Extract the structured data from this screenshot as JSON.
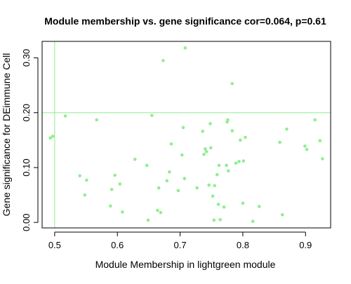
{
  "chart_data": {
    "type": "scatter",
    "title": "Module membership vs. gene significance cor=0.064, p=0.61",
    "xlabel": "Module Membership in lightgreen module",
    "ylabel": "Gene significance for DEimmune Cell",
    "xlim": [
      0.48,
      0.94
    ],
    "ylim": [
      -0.01,
      0.33
    ],
    "x_ticks": [
      0.5,
      0.6,
      0.7,
      0.8,
      0.9
    ],
    "x_tick_labels": [
      "0.5",
      "0.6",
      "0.7",
      "0.8",
      "0.9"
    ],
    "y_ticks": [
      0.0,
      0.1,
      0.2,
      0.3
    ],
    "y_tick_labels": [
      "0.00",
      "0.10",
      "0.20",
      "0.30"
    ],
    "ref_lines": {
      "vertical_x": 0.5,
      "horizontal_y": 0.2
    },
    "grid": false,
    "colors": {
      "points": "#90ee90",
      "reference_lines": "#90ee90",
      "axes": "#000000"
    },
    "points": [
      {
        "x": 0.493,
        "y": 0.154
      },
      {
        "x": 0.497,
        "y": 0.157
      },
      {
        "x": 0.517,
        "y": 0.194
      },
      {
        "x": 0.54,
        "y": 0.085
      },
      {
        "x": 0.548,
        "y": 0.05
      },
      {
        "x": 0.551,
        "y": 0.077
      },
      {
        "x": 0.567,
        "y": 0.187
      },
      {
        "x": 0.589,
        "y": 0.03
      },
      {
        "x": 0.591,
        "y": 0.06
      },
      {
        "x": 0.596,
        "y": 0.086
      },
      {
        "x": 0.604,
        "y": 0.07
      },
      {
        "x": 0.608,
        "y": 0.019
      },
      {
        "x": 0.628,
        "y": 0.115
      },
      {
        "x": 0.647,
        "y": 0.104
      },
      {
        "x": 0.649,
        "y": 0.004
      },
      {
        "x": 0.655,
        "y": 0.195
      },
      {
        "x": 0.664,
        "y": 0.022
      },
      {
        "x": 0.666,
        "y": 0.063
      },
      {
        "x": 0.669,
        "y": 0.018
      },
      {
        "x": 0.673,
        "y": 0.295
      },
      {
        "x": 0.679,
        "y": 0.076
      },
      {
        "x": 0.683,
        "y": 0.092
      },
      {
        "x": 0.686,
        "y": 0.143
      },
      {
        "x": 0.697,
        "y": 0.058
      },
      {
        "x": 0.703,
        "y": 0.123
      },
      {
        "x": 0.705,
        "y": 0.173
      },
      {
        "x": 0.707,
        "y": 0.08
      },
      {
        "x": 0.708,
        "y": 0.318
      },
      {
        "x": 0.727,
        "y": 0.063
      },
      {
        "x": 0.736,
        "y": 0.166
      },
      {
        "x": 0.738,
        "y": 0.124
      },
      {
        "x": 0.74,
        "y": 0.134
      },
      {
        "x": 0.742,
        "y": 0.129
      },
      {
        "x": 0.746,
        "y": 0.068
      },
      {
        "x": 0.748,
        "y": 0.18
      },
      {
        "x": 0.749,
        "y": 0.136
      },
      {
        "x": 0.752,
        "y": 0.048
      },
      {
        "x": 0.754,
        "y": 0.004
      },
      {
        "x": 0.755,
        "y": 0.067
      },
      {
        "x": 0.759,
        "y": 0.087
      },
      {
        "x": 0.761,
        "y": 0.033
      },
      {
        "x": 0.762,
        "y": 0.104
      },
      {
        "x": 0.764,
        "y": 0.005
      },
      {
        "x": 0.77,
        "y": 0.028
      },
      {
        "x": 0.774,
        "y": 0.104
      },
      {
        "x": 0.775,
        "y": 0.183
      },
      {
        "x": 0.776,
        "y": 0.187
      },
      {
        "x": 0.777,
        "y": 0.094
      },
      {
        "x": 0.783,
        "y": 0.253
      },
      {
        "x": 0.783,
        "y": 0.167
      },
      {
        "x": 0.789,
        "y": 0.108
      },
      {
        "x": 0.794,
        "y": 0.111
      },
      {
        "x": 0.796,
        "y": 0.15
      },
      {
        "x": 0.8,
        "y": 0.035
      },
      {
        "x": 0.801,
        "y": 0.112
      },
      {
        "x": 0.804,
        "y": 0.155
      },
      {
        "x": 0.816,
        "y": 0.002
      },
      {
        "x": 0.826,
        "y": 0.029
      },
      {
        "x": 0.859,
        "y": 0.146
      },
      {
        "x": 0.863,
        "y": 0.014
      },
      {
        "x": 0.87,
        "y": 0.17
      },
      {
        "x": 0.899,
        "y": 0.139
      },
      {
        "x": 0.902,
        "y": 0.133
      },
      {
        "x": 0.915,
        "y": 0.187
      },
      {
        "x": 0.923,
        "y": 0.149
      },
      {
        "x": 0.927,
        "y": 0.116
      }
    ]
  }
}
